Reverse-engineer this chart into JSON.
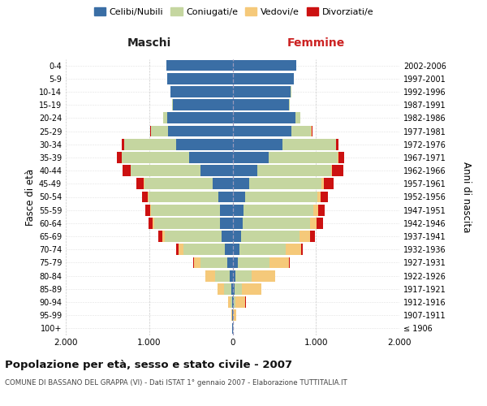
{
  "age_groups": [
    "100+",
    "95-99",
    "90-94",
    "85-89",
    "80-84",
    "75-79",
    "70-74",
    "65-69",
    "60-64",
    "55-59",
    "50-54",
    "45-49",
    "40-44",
    "35-39",
    "30-34",
    "25-29",
    "20-24",
    "15-19",
    "10-14",
    "5-9",
    "0-4"
  ],
  "birth_years": [
    "≤ 1906",
    "1907-1911",
    "1912-1916",
    "1917-1921",
    "1922-1926",
    "1927-1931",
    "1932-1936",
    "1937-1941",
    "1942-1946",
    "1947-1951",
    "1952-1956",
    "1957-1961",
    "1962-1966",
    "1967-1971",
    "1972-1976",
    "1977-1981",
    "1982-1986",
    "1987-1991",
    "1992-1996",
    "1997-2001",
    "2002-2006"
  ],
  "colors": {
    "celibi": "#3a6ea5",
    "coniugati": "#c5d6a0",
    "vedovi": "#f5c97a",
    "divorziati": "#cc1111"
  },
  "maschi": {
    "celibi": [
      2,
      3,
      8,
      18,
      30,
      60,
      90,
      130,
      150,
      155,
      175,
      240,
      380,
      520,
      680,
      770,
      780,
      720,
      740,
      780,
      790
    ],
    "coniugati": [
      0,
      3,
      20,
      80,
      175,
      320,
      500,
      680,
      790,
      820,
      830,
      820,
      840,
      810,
      620,
      210,
      50,
      5,
      2,
      0,
      0
    ],
    "vedovi": [
      0,
      5,
      30,
      80,
      120,
      80,
      60,
      30,
      15,
      10,
      8,
      5,
      3,
      2,
      0,
      0,
      0,
      0,
      0,
      0,
      0
    ],
    "divorziati": [
      0,
      0,
      0,
      2,
      5,
      10,
      30,
      50,
      55,
      60,
      70,
      90,
      100,
      55,
      25,
      10,
      3,
      0,
      0,
      0,
      0
    ]
  },
  "femmine": {
    "celibi": [
      2,
      3,
      10,
      22,
      30,
      60,
      80,
      100,
      120,
      130,
      155,
      200,
      300,
      430,
      600,
      710,
      750,
      680,
      700,
      730,
      760
    ],
    "coniugati": [
      0,
      5,
      25,
      90,
      200,
      380,
      560,
      700,
      810,
      840,
      860,
      870,
      880,
      830,
      640,
      230,
      60,
      5,
      2,
      0,
      0
    ],
    "vedovi": [
      5,
      40,
      120,
      230,
      280,
      240,
      180,
      130,
      80,
      55,
      40,
      25,
      15,
      10,
      5,
      5,
      3,
      0,
      0,
      0,
      0
    ],
    "divorziati": [
      0,
      0,
      2,
      3,
      5,
      10,
      20,
      55,
      75,
      80,
      90,
      120,
      130,
      65,
      25,
      10,
      3,
      0,
      0,
      0,
      0
    ]
  },
  "xlim": 2000,
  "xticks": [
    -2000,
    -1000,
    0,
    1000,
    2000
  ],
  "xticklabels": [
    "2.000",
    "1.000",
    "0",
    "1.000",
    "2.000"
  ],
  "title": "Popolazione per età, sesso e stato civile - 2007",
  "subtitle": "COMUNE DI BASSANO DEL GRAPPA (VI) - Dati ISTAT 1° gennaio 2007 - Elaborazione TUTTITALIA.IT",
  "ylabel_left": "Fasce di età",
  "ylabel_right": "Anni di nascita",
  "header_left": "Maschi",
  "header_right": "Femmine",
  "bg_color": "#ffffff"
}
